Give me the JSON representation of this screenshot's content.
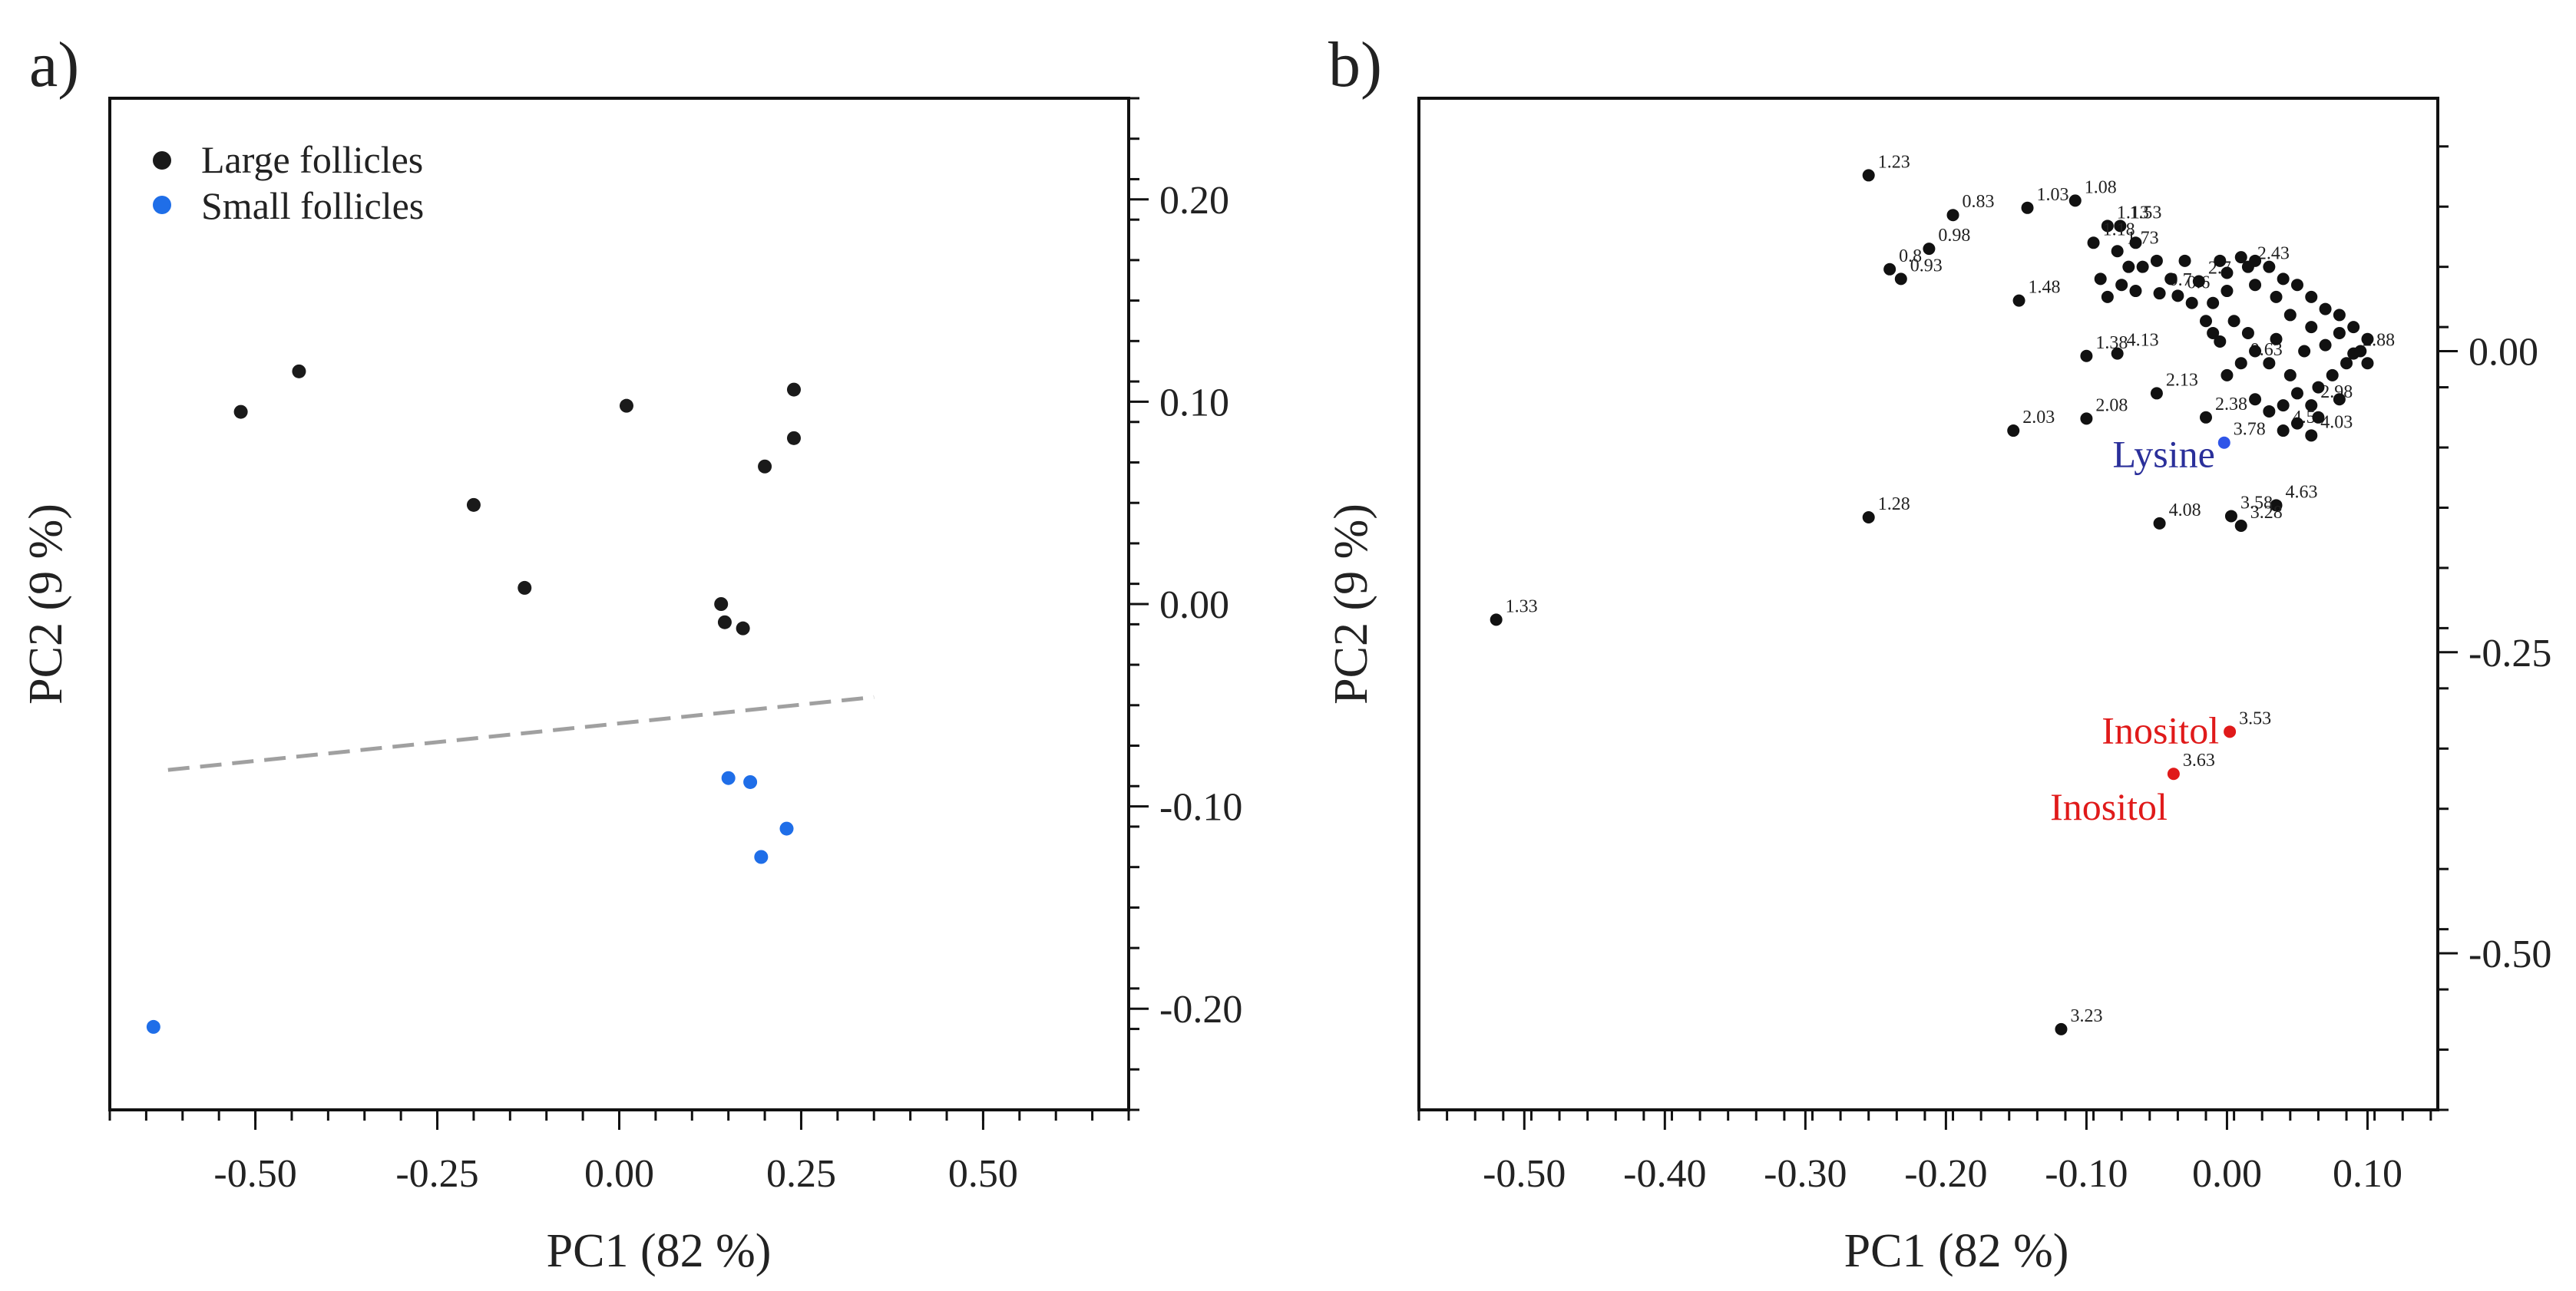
{
  "chart_data": [
    {
      "type": "scatter",
      "panel_label": "a)",
      "xlabel": "PC1 (82 %)",
      "ylabel": "PC2 (9 %)",
      "xlim": [
        -0.7,
        0.7
      ],
      "ylim": [
        -0.25,
        0.25
      ],
      "x_ticks": [
        {
          "v": -0.5,
          "label": "-0.50"
        },
        {
          "v": -0.25,
          "label": "-0.25"
        },
        {
          "v": 0.0,
          "label": "0.00"
        },
        {
          "v": 0.25,
          "label": "0.25"
        },
        {
          "v": 0.5,
          "label": "0.50"
        }
      ],
      "y_ticks": [
        {
          "v": 0.2,
          "label": "0.20"
        },
        {
          "v": 0.1,
          "label": "0.10"
        },
        {
          "v": 0.0,
          "label": "0.00"
        },
        {
          "v": -0.1,
          "label": "-0.10"
        },
        {
          "v": -0.2,
          "label": "-0.20"
        }
      ],
      "legend_position": "top-left",
      "series": [
        {
          "name": "Large follicles",
          "color": "#1a1a1a",
          "points": [
            [
              -0.52,
              0.095
            ],
            [
              -0.44,
              0.115
            ],
            [
              0.01,
              0.098
            ],
            [
              0.24,
              0.106
            ],
            [
              0.24,
              0.082
            ],
            [
              0.2,
              0.068
            ],
            [
              -0.2,
              0.049
            ],
            [
              -0.13,
              0.008
            ],
            [
              0.14,
              0.0
            ],
            [
              0.145,
              -0.009
            ],
            [
              0.17,
              -0.012
            ]
          ]
        },
        {
          "name": "Small follicles",
          "color": "#1f6ee8",
          "points": [
            [
              0.15,
              -0.086
            ],
            [
              0.18,
              -0.088
            ],
            [
              0.23,
              -0.111
            ],
            [
              0.195,
              -0.125
            ],
            [
              -0.64,
              -0.209
            ]
          ]
        }
      ],
      "annotations": [
        {
          "type": "dashed_line",
          "color": "#a0a0a0",
          "from": [
            -0.62,
            -0.082
          ],
          "to": [
            0.35,
            -0.046
          ]
        }
      ]
    },
    {
      "type": "scatter",
      "panel_label": "b)",
      "xlabel": "PC1 (82 %)",
      "ylabel": "PC2 (9 %)",
      "xlim": [
        -0.575,
        0.15
      ],
      "ylim": [
        -0.63,
        0.21
      ],
      "x_ticks": [
        {
          "v": -0.5,
          "label": "-0.50"
        },
        {
          "v": -0.4,
          "label": "-0.40"
        },
        {
          "v": -0.3,
          "label": "-0.30"
        },
        {
          "v": -0.2,
          "label": "-0.20"
        },
        {
          "v": -0.1,
          "label": "-0.10"
        },
        {
          "v": 0.0,
          "label": "0.00"
        },
        {
          "v": 0.1,
          "label": "0.10"
        }
      ],
      "y_ticks": [
        {
          "v": 0.0,
          "label": "0.00"
        },
        {
          "v": -0.25,
          "label": "-0.25"
        },
        {
          "v": -0.5,
          "label": "-0.50"
        }
      ],
      "point_color": "#111111",
      "points": [
        {
          "x": -0.255,
          "y": 0.146,
          "label": "1.23"
        },
        {
          "x": -0.195,
          "y": 0.113,
          "label": "0.83"
        },
        {
          "x": -0.142,
          "y": 0.119,
          "label": "1.03"
        },
        {
          "x": -0.108,
          "y": 0.125,
          "label": "1.08"
        },
        {
          "x": -0.212,
          "y": 0.085,
          "label": "0.98"
        },
        {
          "x": -0.24,
          "y": 0.068,
          "label": "0.8"
        },
        {
          "x": -0.232,
          "y": 0.06,
          "label": "0.93"
        },
        {
          "x": -0.085,
          "y": 0.104,
          "label": "1.13"
        },
        {
          "x": -0.076,
          "y": 0.104,
          "label": "1.53"
        },
        {
          "x": -0.095,
          "y": 0.09,
          "label": "1.18"
        },
        {
          "x": -0.078,
          "y": 0.083,
          "label": "1.73"
        },
        {
          "x": -0.148,
          "y": 0.042,
          "label": "1.48"
        },
        {
          "x": -0.1,
          "y": -0.004,
          "label": "1.38"
        },
        {
          "x": -0.078,
          "y": -0.002,
          "label": "4.13"
        },
        {
          "x": -0.048,
          "y": 0.048,
          "label": "0.7"
        },
        {
          "x": -0.035,
          "y": 0.046,
          "label": "0.6"
        },
        {
          "x": -0.02,
          "y": 0.058,
          "label": "2.7"
        },
        {
          "x": -0.05,
          "y": -0.035,
          "label": "2.13"
        },
        {
          "x": -0.1,
          "y": -0.056,
          "label": "2.08"
        },
        {
          "x": -0.152,
          "y": -0.066,
          "label": "2.03"
        },
        {
          "x": -0.015,
          "y": -0.055,
          "label": "2.38"
        },
        {
          "x": 0.035,
          "y": -0.128,
          "label": "4.63"
        },
        {
          "x": -0.048,
          "y": -0.143,
          "label": "4.08"
        },
        {
          "x": 0.003,
          "y": -0.137,
          "label": "3.58"
        },
        {
          "x": 0.01,
          "y": -0.145,
          "label": "3.28"
        },
        {
          "x": -0.255,
          "y": -0.138,
          "label": "1.28"
        },
        {
          "x": -0.52,
          "y": -0.223,
          "label": "1.33"
        },
        {
          "x": -0.118,
          "y": -0.563,
          "label": "3.23"
        },
        {
          "x": 0.01,
          "y": -0.01,
          "label": "0.63"
        },
        {
          "x": 0.015,
          "y": 0.07,
          "label": "2.43"
        },
        {
          "x": 0.09,
          "y": -0.002,
          "label": "2.88"
        },
        {
          "x": 0.06,
          "y": -0.045,
          "label": "2.98"
        },
        {
          "x": 0.06,
          "y": -0.07,
          "label": "4.03"
        },
        {
          "x": 0.04,
          "y": -0.066,
          "label": "4.5"
        },
        {
          "x": -0.05,
          "y": 0.075,
          "label": ""
        },
        {
          "x": -0.06,
          "y": 0.07,
          "label": ""
        },
        {
          "x": -0.03,
          "y": 0.075,
          "label": ""
        },
        {
          "x": -0.005,
          "y": 0.075,
          "label": ""
        },
        {
          "x": 0.0,
          "y": 0.065,
          "label": ""
        },
        {
          "x": 0.01,
          "y": 0.078,
          "label": ""
        },
        {
          "x": 0.02,
          "y": 0.075,
          "label": ""
        },
        {
          "x": 0.03,
          "y": 0.07,
          "label": ""
        },
        {
          "x": 0.04,
          "y": 0.06,
          "label": ""
        },
        {
          "x": 0.05,
          "y": 0.055,
          "label": ""
        },
        {
          "x": 0.06,
          "y": 0.045,
          "label": ""
        },
        {
          "x": 0.07,
          "y": 0.035,
          "label": ""
        },
        {
          "x": 0.08,
          "y": 0.03,
          "label": ""
        },
        {
          "x": 0.09,
          "y": 0.02,
          "label": ""
        },
        {
          "x": 0.1,
          "y": 0.01,
          "label": ""
        },
        {
          "x": 0.095,
          "y": 0.0,
          "label": ""
        },
        {
          "x": 0.085,
          "y": -0.01,
          "label": ""
        },
        {
          "x": 0.075,
          "y": -0.02,
          "label": ""
        },
        {
          "x": 0.065,
          "y": -0.03,
          "label": ""
        },
        {
          "x": 0.05,
          "y": -0.035,
          "label": ""
        },
        {
          "x": 0.04,
          "y": -0.045,
          "label": ""
        },
        {
          "x": 0.03,
          "y": -0.05,
          "label": ""
        },
        {
          "x": 0.02,
          "y": -0.04,
          "label": ""
        },
        {
          "x": 0.045,
          "y": -0.02,
          "label": ""
        },
        {
          "x": 0.03,
          "y": -0.01,
          "label": ""
        },
        {
          "x": 0.02,
          "y": 0.0,
          "label": ""
        },
        {
          "x": 0.055,
          "y": 0.0,
          "label": ""
        },
        {
          "x": 0.07,
          "y": 0.005,
          "label": ""
        },
        {
          "x": 0.08,
          "y": 0.015,
          "label": ""
        },
        {
          "x": 0.06,
          "y": 0.02,
          "label": ""
        },
        {
          "x": 0.045,
          "y": 0.03,
          "label": ""
        },
        {
          "x": 0.035,
          "y": 0.045,
          "label": ""
        },
        {
          "x": 0.02,
          "y": 0.055,
          "label": ""
        },
        {
          "x": 0.0,
          "y": 0.05,
          "label": ""
        },
        {
          "x": -0.01,
          "y": 0.04,
          "label": ""
        },
        {
          "x": 0.005,
          "y": 0.025,
          "label": ""
        },
        {
          "x": 0.015,
          "y": 0.015,
          "label": ""
        },
        {
          "x": -0.005,
          "y": 0.008,
          "label": ""
        },
        {
          "x": 0.0,
          "y": -0.02,
          "label": ""
        },
        {
          "x": 0.035,
          "y": 0.01,
          "label": ""
        },
        {
          "x": 0.065,
          "y": -0.055,
          "label": ""
        },
        {
          "x": 0.05,
          "y": -0.06,
          "label": ""
        },
        {
          "x": 0.08,
          "y": -0.04,
          "label": ""
        },
        {
          "x": 0.1,
          "y": -0.01,
          "label": ""
        },
        {
          "x": -0.075,
          "y": 0.055,
          "label": ""
        },
        {
          "x": -0.09,
          "y": 0.06,
          "label": ""
        },
        {
          "x": -0.085,
          "y": 0.045,
          "label": ""
        },
        {
          "x": -0.065,
          "y": 0.05,
          "label": ""
        },
        {
          "x": -0.04,
          "y": 0.06,
          "label": ""
        },
        {
          "x": -0.025,
          "y": 0.04,
          "label": ""
        },
        {
          "x": -0.015,
          "y": 0.025,
          "label": ""
        },
        {
          "x": -0.01,
          "y": 0.015,
          "label": ""
        },
        {
          "x": -0.07,
          "y": 0.07,
          "label": ""
        },
        {
          "x": -0.065,
          "y": 0.09,
          "label": ""
        }
      ],
      "highlighted": [
        {
          "name": "Lysine",
          "x": -0.002,
          "y": -0.076,
          "point_label": "3.78",
          "color": "#2a2f9a",
          "dot_color": "#2f55e8"
        },
        {
          "name": "Inositol",
          "x": 0.002,
          "y": -0.316,
          "point_label": "3.53",
          "color": "#e01a1a",
          "dot_color": "#e01a1a"
        },
        {
          "name": "Inositol",
          "x": -0.038,
          "y": -0.351,
          "point_label": "3.63",
          "color": "#e01a1a",
          "dot_color": "#e01a1a"
        }
      ]
    }
  ]
}
